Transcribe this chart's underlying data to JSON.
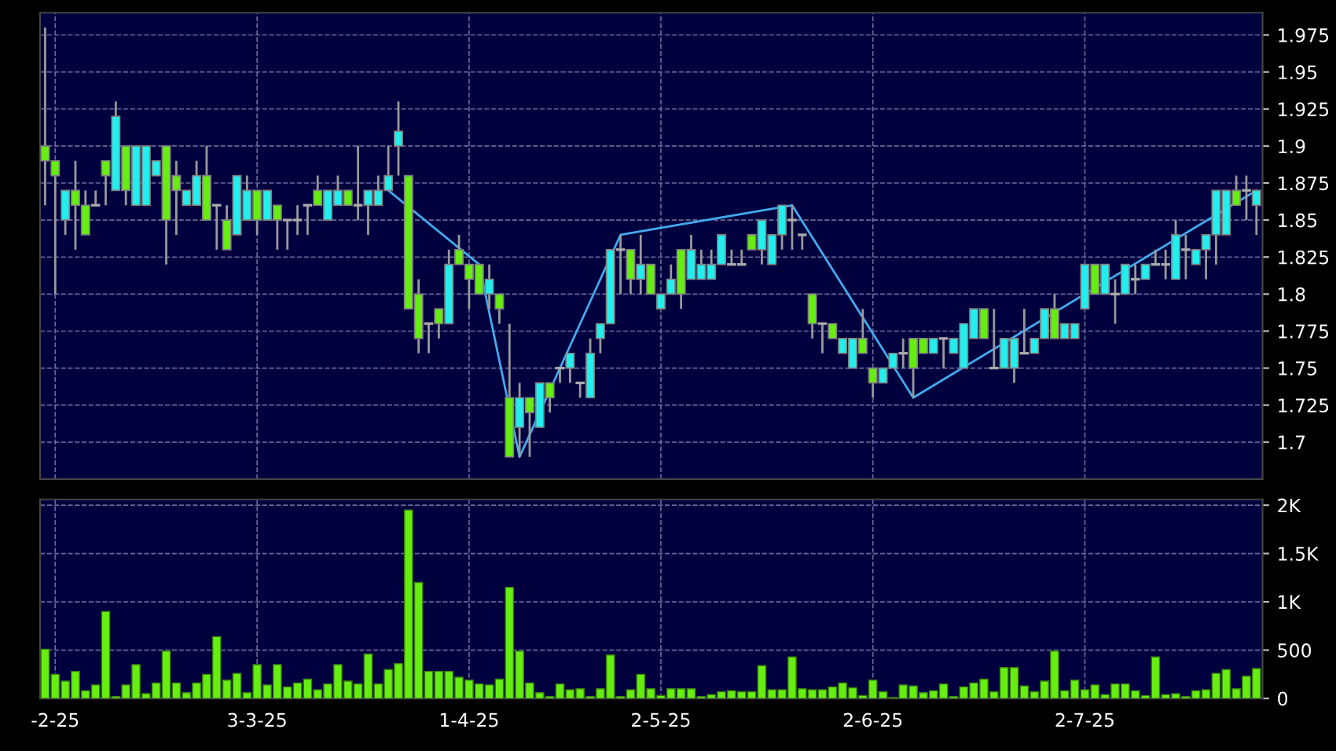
{
  "chart_data": [
    {
      "type": "candlestick",
      "categories": [
        null,
        null,
        null,
        null,
        null,
        null,
        null,
        null,
        null,
        null,
        null,
        null,
        null,
        null,
        null,
        null,
        null,
        null,
        null,
        null,
        null,
        null,
        null,
        null,
        null,
        null,
        null,
        null,
        null,
        null,
        null,
        null,
        null,
        null,
        null,
        null,
        null,
        null,
        null,
        null,
        null,
        null,
        null,
        null,
        null,
        null,
        null,
        null,
        null,
        null,
        null,
        null,
        null,
        null,
        null,
        null,
        null,
        null,
        null,
        null,
        null,
        null,
        null,
        null,
        null,
        null,
        null,
        null,
        null,
        null,
        null,
        null,
        null,
        null,
        null,
        null,
        null,
        null,
        null,
        null,
        null,
        null,
        null,
        null,
        null,
        null,
        null,
        null,
        null,
        null,
        null,
        null,
        null,
        null,
        null,
        null,
        null,
        null,
        null,
        null,
        null,
        null,
        null,
        null,
        null,
        null,
        null,
        null,
        null,
        null,
        null,
        null,
        null,
        null,
        null,
        null,
        null,
        null,
        null,
        null,
        null
      ],
      "ohlc": [
        [
          1.9,
          1.98,
          1.86,
          1.89
        ],
        [
          1.89,
          1.89,
          1.8,
          1.88
        ],
        [
          1.85,
          1.87,
          1.84,
          1.87
        ],
        [
          1.87,
          1.89,
          1.83,
          1.86
        ],
        [
          1.86,
          1.87,
          1.84,
          1.84
        ],
        [
          1.86,
          1.87,
          1.86,
          1.86
        ],
        [
          1.89,
          1.89,
          1.86,
          1.88
        ],
        [
          1.87,
          1.93,
          1.87,
          1.92
        ],
        [
          1.9,
          1.9,
          1.86,
          1.87
        ],
        [
          1.86,
          1.9,
          1.86,
          1.9
        ],
        [
          1.86,
          1.9,
          1.86,
          1.9
        ],
        [
          1.88,
          1.89,
          1.88,
          1.89
        ],
        [
          1.9,
          1.9,
          1.82,
          1.85
        ],
        [
          1.88,
          1.89,
          1.84,
          1.87
        ],
        [
          1.86,
          1.87,
          1.86,
          1.87
        ],
        [
          1.86,
          1.89,
          1.86,
          1.88
        ],
        [
          1.88,
          1.9,
          1.85,
          1.85
        ],
        [
          1.86,
          1.86,
          1.83,
          1.86
        ],
        [
          1.85,
          1.86,
          1.83,
          1.83
        ],
        [
          1.84,
          1.88,
          1.84,
          1.88
        ],
        [
          1.85,
          1.88,
          1.85,
          1.87
        ],
        [
          1.87,
          1.87,
          1.84,
          1.85
        ],
        [
          1.85,
          1.87,
          1.85,
          1.87
        ],
        [
          1.86,
          1.86,
          1.83,
          1.85
        ],
        [
          1.85,
          1.85,
          1.83,
          1.85
        ],
        [
          1.85,
          1.86,
          1.84,
          1.85
        ],
        [
          1.86,
          1.86,
          1.84,
          1.86
        ],
        [
          1.87,
          1.88,
          1.86,
          1.86
        ],
        [
          1.85,
          1.87,
          1.85,
          1.87
        ],
        [
          1.86,
          1.88,
          1.86,
          1.87
        ],
        [
          1.87,
          1.87,
          1.86,
          1.86
        ],
        [
          1.86,
          1.9,
          1.85,
          1.86
        ],
        [
          1.86,
          1.87,
          1.84,
          1.87
        ],
        [
          1.86,
          1.88,
          1.86,
          1.87
        ],
        [
          1.87,
          1.9,
          1.87,
          1.88
        ],
        [
          1.9,
          1.93,
          1.88,
          1.91
        ],
        [
          1.88,
          1.88,
          1.79,
          1.79
        ],
        [
          1.8,
          1.81,
          1.76,
          1.77
        ],
        [
          1.78,
          1.78,
          1.76,
          1.78
        ],
        [
          1.79,
          1.79,
          1.77,
          1.78
        ],
        [
          1.78,
          1.83,
          1.78,
          1.82
        ],
        [
          1.83,
          1.84,
          1.82,
          1.82
        ],
        [
          1.82,
          1.82,
          1.79,
          1.81
        ],
        [
          1.82,
          1.82,
          1.8,
          1.8
        ],
        [
          1.8,
          1.82,
          1.79,
          1.81
        ],
        [
          1.8,
          1.8,
          1.78,
          1.79
        ],
        [
          1.73,
          1.78,
          1.69,
          1.69
        ],
        [
          1.71,
          1.74,
          1.69,
          1.73
        ],
        [
          1.73,
          1.73,
          1.69,
          1.72
        ],
        [
          1.71,
          1.74,
          1.71,
          1.74
        ],
        [
          1.74,
          1.74,
          1.72,
          1.73
        ],
        [
          1.75,
          1.75,
          1.74,
          1.75
        ],
        [
          1.75,
          1.76,
          1.74,
          1.76
        ],
        [
          1.74,
          1.74,
          1.73,
          1.74
        ],
        [
          1.73,
          1.77,
          1.73,
          1.76
        ],
        [
          1.77,
          1.78,
          1.76,
          1.78
        ],
        [
          1.78,
          1.83,
          1.78,
          1.83
        ],
        [
          1.83,
          1.84,
          1.8,
          1.83
        ],
        [
          1.83,
          1.83,
          1.8,
          1.81
        ],
        [
          1.81,
          1.84,
          1.8,
          1.82
        ],
        [
          1.82,
          1.82,
          1.8,
          1.8
        ],
        [
          1.79,
          1.8,
          1.79,
          1.8
        ],
        [
          1.8,
          1.82,
          1.8,
          1.81
        ],
        [
          1.83,
          1.83,
          1.79,
          1.8
        ],
        [
          1.81,
          1.84,
          1.81,
          1.83
        ],
        [
          1.81,
          1.83,
          1.81,
          1.82
        ],
        [
          1.81,
          1.83,
          1.81,
          1.82
        ],
        [
          1.82,
          1.84,
          1.82,
          1.84
        ],
        [
          1.82,
          1.83,
          1.82,
          1.82
        ],
        [
          1.82,
          1.83,
          1.82,
          1.82
        ],
        [
          1.84,
          1.84,
          1.83,
          1.83
        ],
        [
          1.83,
          1.85,
          1.82,
          1.85
        ],
        [
          1.82,
          1.84,
          1.82,
          1.84
        ],
        [
          1.84,
          1.86,
          1.83,
          1.86
        ],
        [
          1.85,
          1.86,
          1.83,
          1.85
        ],
        [
          1.84,
          1.84,
          1.83,
          1.84
        ],
        [
          1.8,
          1.8,
          1.77,
          1.78
        ],
        [
          1.78,
          1.78,
          1.76,
          1.78
        ],
        [
          1.78,
          1.78,
          1.77,
          1.77
        ],
        [
          1.76,
          1.77,
          1.76,
          1.77
        ],
        [
          1.75,
          1.77,
          1.75,
          1.77
        ],
        [
          1.77,
          1.79,
          1.76,
          1.76
        ],
        [
          1.75,
          1.75,
          1.73,
          1.74
        ],
        [
          1.74,
          1.75,
          1.74,
          1.75
        ],
        [
          1.75,
          1.76,
          1.75,
          1.76
        ],
        [
          1.76,
          1.77,
          1.75,
          1.76
        ],
        [
          1.77,
          1.77,
          1.73,
          1.75
        ],
        [
          1.77,
          1.77,
          1.76,
          1.76
        ],
        [
          1.76,
          1.77,
          1.76,
          1.77
        ],
        [
          1.77,
          1.77,
          1.75,
          1.77
        ],
        [
          1.76,
          1.77,
          1.76,
          1.77
        ],
        [
          1.75,
          1.78,
          1.75,
          1.78
        ],
        [
          1.77,
          1.79,
          1.77,
          1.79
        ],
        [
          1.79,
          1.79,
          1.77,
          1.77
        ],
        [
          1.75,
          1.79,
          1.75,
          1.75
        ],
        [
          1.75,
          1.77,
          1.75,
          1.77
        ],
        [
          1.75,
          1.77,
          1.74,
          1.77
        ],
        [
          1.76,
          1.79,
          1.76,
          1.76
        ],
        [
          1.76,
          1.77,
          1.76,
          1.77
        ],
        [
          1.77,
          1.79,
          1.77,
          1.79
        ],
        [
          1.79,
          1.8,
          1.77,
          1.77
        ],
        [
          1.77,
          1.78,
          1.77,
          1.78
        ],
        [
          1.77,
          1.78,
          1.77,
          1.78
        ],
        [
          1.79,
          1.82,
          1.79,
          1.82
        ],
        [
          1.82,
          1.82,
          1.8,
          1.8
        ],
        [
          1.8,
          1.82,
          1.8,
          1.82
        ],
        [
          1.8,
          1.81,
          1.78,
          1.8
        ],
        [
          1.8,
          1.82,
          1.8,
          1.82
        ],
        [
          1.81,
          1.82,
          1.8,
          1.81
        ],
        [
          1.81,
          1.82,
          1.81,
          1.82
        ],
        [
          1.82,
          1.83,
          1.82,
          1.82
        ],
        [
          1.82,
          1.83,
          1.81,
          1.82
        ],
        [
          1.81,
          1.85,
          1.81,
          1.84
        ],
        [
          1.83,
          1.84,
          1.81,
          1.83
        ],
        [
          1.82,
          1.83,
          1.82,
          1.83
        ],
        [
          1.83,
          1.84,
          1.81,
          1.84
        ],
        [
          1.84,
          1.87,
          1.82,
          1.87
        ],
        [
          1.84,
          1.87,
          1.84,
          1.87
        ],
        [
          1.87,
          1.88,
          1.86,
          1.86
        ],
        [
          1.87,
          1.88,
          1.85,
          1.87
        ],
        [
          1.86,
          1.87,
          1.84,
          1.87
        ]
      ],
      "colors": [
        "#66ee11",
        "#66ee11",
        "#22eeee",
        "#66ee11",
        "#66ee11",
        "#aaaaaa",
        "#66ee11",
        "#22eeee",
        "#66ee11",
        "#22eeee",
        "#22eeee",
        "#22eeee",
        "#66ee11",
        "#66ee11",
        "#22eeee",
        "#22eeee",
        "#66ee11",
        "#aaaaaa",
        "#66ee11",
        "#22eeee",
        "#22eeee",
        "#66ee11",
        "#22eeee",
        "#66ee11",
        "#aaaaaa",
        "#aaaaaa",
        "#aaaaaa",
        "#66ee11",
        "#22eeee",
        "#22eeee",
        "#66ee11",
        "#aaaaaa",
        "#22eeee",
        "#22eeee",
        "#22eeee",
        "#22eeee",
        "#66ee11",
        "#66ee11",
        "#aaaaaa",
        "#66ee11",
        "#22eeee",
        "#66ee11",
        "#66ee11",
        "#66ee11",
        "#22eeee",
        "#66ee11",
        "#66ee11",
        "#22eeee",
        "#66ee11",
        "#22eeee",
        "#66ee11",
        "#aaaaaa",
        "#22eeee",
        "#aaaaaa",
        "#22eeee",
        "#22eeee",
        "#22eeee",
        "#aaaaaa",
        "#66ee11",
        "#22eeee",
        "#66ee11",
        "#22eeee",
        "#22eeee",
        "#66ee11",
        "#22eeee",
        "#22eeee",
        "#22eeee",
        "#22eeee",
        "#aaaaaa",
        "#aaaaaa",
        "#66ee11",
        "#22eeee",
        "#22eeee",
        "#22eeee",
        "#aaaaaa",
        "#aaaaaa",
        "#66ee11",
        "#aaaaaa",
        "#66ee11",
        "#22eeee",
        "#22eeee",
        "#66ee11",
        "#66ee11",
        "#22eeee",
        "#22eeee",
        "#aaaaaa",
        "#66ee11",
        "#66ee11",
        "#22eeee",
        "#aaaaaa",
        "#22eeee",
        "#22eeee",
        "#22eeee",
        "#66ee11",
        "#aaaaaa",
        "#22eeee",
        "#22eeee",
        "#aaaaaa",
        "#22eeee",
        "#22eeee",
        "#66ee11",
        "#22eeee",
        "#22eeee",
        "#22eeee",
        "#66ee11",
        "#22eeee",
        "#aaaaaa",
        "#22eeee",
        "#aaaaaa",
        "#22eeee",
        "#aaaaaa",
        "#aaaaaa",
        "#22eeee",
        "#aaaaaa",
        "#22eeee",
        "#22eeee",
        "#22eeee",
        "#22eeee",
        "#66ee11",
        "#aaaaaa",
        "#22eeee"
      ],
      "series": [
        {
          "type": "line",
          "color": "#44aaee",
          "values": [
            null,
            null,
            null,
            null,
            null,
            null,
            null,
            null,
            null,
            null,
            null,
            null,
            null,
            null,
            null,
            null,
            null,
            null,
            null,
            null,
            null,
            null,
            null,
            null,
            null,
            null,
            null,
            null,
            null,
            null,
            null,
            null,
            null,
            null,
            1.87,
            null,
            null,
            null,
            null,
            null,
            null,
            null,
            null,
            1.82,
            null,
            null,
            null,
            1.69,
            null,
            null,
            null,
            null,
            null,
            null,
            null,
            null,
            null,
            1.84,
            null,
            null,
            null,
            null,
            null,
            null,
            null,
            null,
            null,
            null,
            null,
            null,
            null,
            null,
            null,
            null,
            1.86,
            null,
            null,
            null,
            null,
            null,
            null,
            null,
            null,
            null,
            null,
            null,
            1.73,
            null,
            null,
            null,
            null,
            null,
            null,
            null,
            null,
            null,
            null,
            null,
            null,
            null,
            null,
            null,
            null,
            null,
            null,
            null,
            null,
            null,
            null,
            null,
            null,
            null,
            null,
            null,
            null,
            null,
            null,
            null,
            null,
            null,
            1.87
          ]
        }
      ],
      "ylim": [
        1.675,
        1.99
      ],
      "yticks": [
        1.7,
        1.725,
        1.75,
        1.775,
        1.8,
        1.825,
        1.85,
        1.875,
        1.9,
        1.925,
        1.95,
        1.975
      ],
      "grid": true
    },
    {
      "type": "bar",
      "categories": [
        null,
        "-2-25",
        null,
        null,
        null,
        null,
        null,
        null,
        null,
        null,
        null,
        null,
        null,
        null,
        null,
        null,
        null,
        null,
        null,
        null,
        null,
        "3-3-25",
        null,
        null,
        null,
        null,
        null,
        null,
        null,
        null,
        null,
        null,
        null,
        null,
        null,
        null,
        null,
        null,
        null,
        null,
        null,
        null,
        "1-4-25",
        null,
        null,
        null,
        null,
        null,
        null,
        null,
        null,
        null,
        null,
        null,
        null,
        null,
        null,
        null,
        null,
        null,
        null,
        "2-5-25",
        null,
        null,
        null,
        null,
        null,
        null,
        null,
        null,
        null,
        null,
        null,
        null,
        null,
        null,
        null,
        null,
        null,
        null,
        null,
        null,
        "2-6-25",
        null,
        null,
        null,
        null,
        null,
        null,
        null,
        null,
        null,
        null,
        null,
        null,
        null,
        null,
        null,
        null,
        null,
        null,
        null,
        null,
        "2-7-25",
        null,
        null,
        null,
        null,
        null,
        null,
        null,
        null,
        null,
        null,
        null,
        null,
        null,
        null,
        null,
        null,
        null
      ],
      "values": [
        510,
        250,
        180,
        280,
        80,
        140,
        900,
        20,
        140,
        350,
        50,
        160,
        490,
        160,
        60,
        160,
        250,
        640,
        190,
        260,
        60,
        350,
        140,
        350,
        120,
        160,
        200,
        90,
        150,
        350,
        180,
        150,
        460,
        150,
        300,
        360,
        1950,
        1200,
        280,
        280,
        280,
        220,
        190,
        150,
        140,
        200,
        1150,
        490,
        160,
        60,
        20,
        150,
        90,
        100,
        20,
        100,
        450,
        20,
        90,
        250,
        100,
        30,
        100,
        100,
        100,
        20,
        40,
        70,
        80,
        70,
        70,
        340,
        90,
        90,
        430,
        100,
        90,
        90,
        120,
        160,
        110,
        30,
        190,
        70,
        10,
        140,
        130,
        60,
        80,
        150,
        20,
        120,
        160,
        200,
        70,
        320,
        320,
        130,
        70,
        180,
        490,
        80,
        190,
        90,
        140,
        40,
        150,
        150,
        80,
        30,
        430,
        40,
        50,
        20,
        80,
        90,
        260,
        300,
        100,
        230,
        310
      ],
      "color": "#66ee11",
      "ylim": [
        0,
        2060
      ],
      "yticks": [
        0,
        500,
        {
          "value": 1000,
          "label": "1K"
        },
        {
          "value": 1500,
          "label": "1.5K"
        },
        {
          "value": 2000,
          "label": "2K"
        }
      ],
      "grid": true
    }
  ]
}
